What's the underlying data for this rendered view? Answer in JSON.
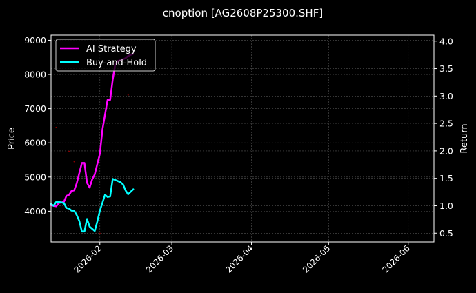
{
  "chart_data": {
    "type": "line",
    "title": "cnoption [AG2608P25300.SHF]",
    "xlabel": "",
    "ylabel": "Price",
    "y2label": "Return",
    "ylim": [
      3100,
      9150
    ],
    "y2lim": [
      0.34,
      4.11
    ],
    "xlim": [
      "2026-01-13",
      "2026-06-11"
    ],
    "grid": true,
    "legend_position": "upper left",
    "background": "#000000",
    "x_ticks": [
      "2026-02",
      "2026-03",
      "2026-04",
      "2026-05",
      "2026-06"
    ],
    "y_ticks": [
      4000,
      5000,
      6000,
      7000,
      8000,
      9000
    ],
    "y2_ticks": [
      "0.5",
      "1.0",
      "1.5",
      "2.0",
      "2.5",
      "3.0",
      "3.5",
      "4.0"
    ],
    "series": [
      {
        "name": "AI Strategy",
        "axis": "right",
        "color": "#ff00ff",
        "x": [
          "2026-01-13",
          "2026-01-15",
          "2026-01-16",
          "2026-01-18",
          "2026-01-19",
          "2026-01-20",
          "2026-01-21",
          "2026-01-22",
          "2026-01-23",
          "2026-01-25",
          "2026-01-26",
          "2026-01-27",
          "2026-01-28",
          "2026-01-29",
          "2026-01-30",
          "2026-02-01",
          "2026-02-02",
          "2026-02-04",
          "2026-02-05",
          "2026-02-06",
          "2026-02-07",
          "2026-02-08",
          "2026-02-10",
          "2026-02-11",
          "2026-02-12",
          "2026-02-14"
        ],
        "values": [
          1.01,
          0.99,
          1.05,
          1.07,
          1.18,
          1.2,
          1.27,
          1.28,
          1.41,
          1.78,
          1.78,
          1.42,
          1.33,
          1.48,
          1.57,
          1.95,
          2.39,
          2.93,
          2.93,
          3.3,
          3.58,
          3.64,
          3.67,
          3.69,
          3.73,
          3.77
        ]
      },
      {
        "name": "Buy-and-Hold",
        "axis": "right",
        "color": "#00ffff",
        "x": [
          "2026-01-13",
          "2026-01-14",
          "2026-01-15",
          "2026-01-16",
          "2026-01-18",
          "2026-01-19",
          "2026-01-20",
          "2026-01-21",
          "2026-01-22",
          "2026-01-23",
          "2026-01-24",
          "2026-01-25",
          "2026-01-26",
          "2026-01-27",
          "2026-01-28",
          "2026-01-30",
          "2026-01-31",
          "2026-02-01",
          "2026-02-03",
          "2026-02-04",
          "2026-02-05",
          "2026-02-06",
          "2026-02-07",
          "2026-02-09",
          "2026-02-10",
          "2026-02-11",
          "2026-02-12",
          "2026-02-14"
        ],
        "values": [
          1.03,
          1.0,
          1.07,
          1.07,
          1.05,
          0.96,
          0.95,
          0.91,
          0.91,
          0.83,
          0.72,
          0.53,
          0.53,
          0.76,
          0.62,
          0.54,
          0.71,
          0.91,
          1.2,
          1.16,
          1.17,
          1.49,
          1.47,
          1.43,
          1.39,
          1.28,
          1.21,
          1.3
        ]
      }
    ],
    "price_markers": {
      "color": "#8b0000",
      "note": "faint dark-red scatter dots on price axis",
      "points": [
        {
          "x": "2026-01-15",
          "price": 6450
        },
        {
          "x": "2026-01-20",
          "price": 5750
        },
        {
          "x": "2026-01-22",
          "price": 5450
        },
        {
          "x": "2026-02-12",
          "price": 7400
        },
        {
          "x": "2026-02-01",
          "price": 3350
        }
      ]
    }
  },
  "legend": {
    "items": [
      {
        "label": "AI Strategy",
        "color": "#ff00ff"
      },
      {
        "label": "Buy-and-Hold",
        "color": "#00ffff"
      }
    ]
  }
}
